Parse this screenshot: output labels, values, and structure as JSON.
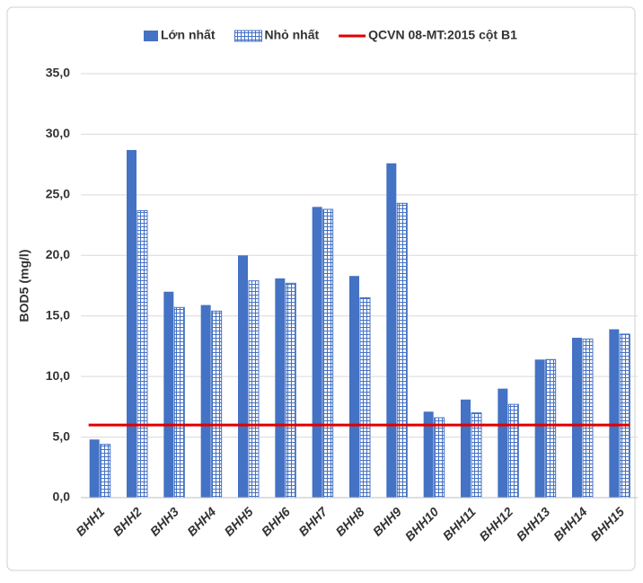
{
  "chart_data": {
    "type": "bar",
    "y_label": "BOD5 (mg/l)",
    "categories": [
      "BHH1",
      "BHH2",
      "BHH3",
      "BHH4",
      "BHH5",
      "BHH6",
      "BHH7",
      "BHH8",
      "BHH9",
      "BHH10",
      "BHH11",
      "BHH12",
      "BHH13",
      "BHH14",
      "BHH15"
    ],
    "series": [
      {
        "name": "Lớn nhất",
        "color": "#4472c4",
        "fill": "solid",
        "values": [
          4.8,
          28.7,
          17.0,
          15.9,
          20.0,
          18.1,
          24.0,
          18.3,
          27.6,
          7.1,
          8.1,
          9.0,
          11.4,
          13.2,
          13.9
        ]
      },
      {
        "name": "Nhỏ nhất",
        "color": "#4472c4",
        "fill": "grid",
        "values": [
          4.4,
          23.7,
          15.7,
          15.4,
          17.9,
          17.7,
          23.8,
          16.5,
          24.3,
          6.6,
          7.0,
          7.7,
          11.4,
          13.1,
          13.5
        ]
      }
    ],
    "threshold": {
      "name": "QCVN 08-MT:2015 cột B1",
      "color": "#e00000",
      "value": 6
    },
    "ylim": [
      0,
      35
    ],
    "yticks": [
      {
        "value": 0,
        "label": "0,0"
      },
      {
        "value": 5,
        "label": "5,0"
      },
      {
        "value": 10,
        "label": "10,0"
      },
      {
        "value": 15,
        "label": "15,0"
      },
      {
        "value": 20,
        "label": "20,0"
      },
      {
        "value": 25,
        "label": "25,0"
      },
      {
        "value": 30,
        "label": "30,0"
      },
      {
        "value": 35,
        "label": "35,0"
      }
    ],
    "grid": true
  }
}
